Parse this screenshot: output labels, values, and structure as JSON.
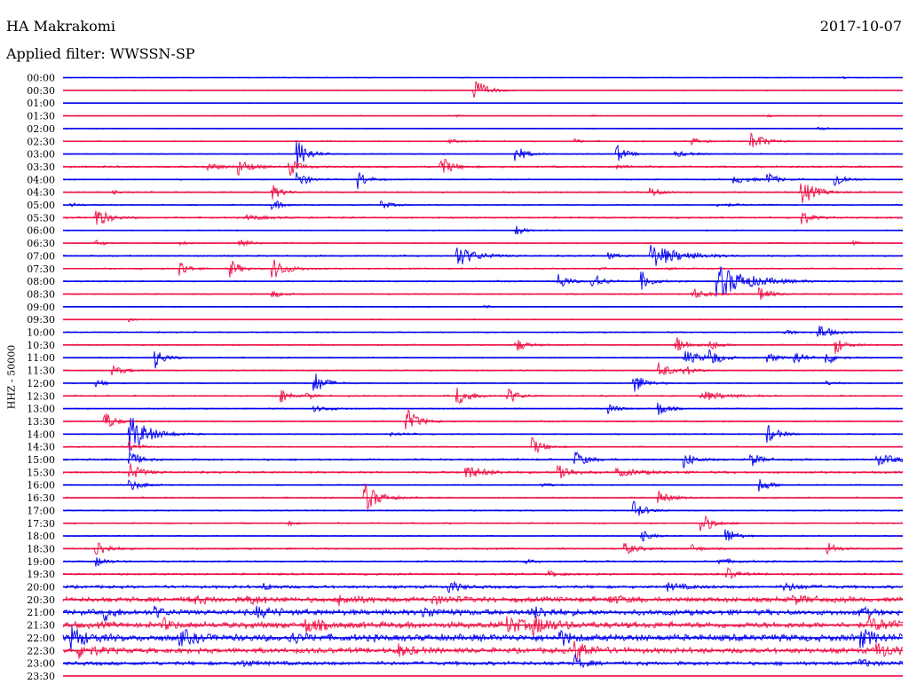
{
  "header": {
    "station": "HA Makrakomi",
    "date": "2017-10-07",
    "filter": "Applied filter: WWSSN-SP",
    "channel_label": "HHZ - 50000"
  },
  "colors": {
    "odd_trace": "#0000ee",
    "even_trace": "#ee1144"
  },
  "chart_data": {
    "type": "line",
    "title": "HA Makrakomi",
    "subtitle": "Applied filter: WWSSN-SP",
    "ylabel": "HHZ - 50000",
    "date": "2017-10-07",
    "row_interval_minutes": 30,
    "series_colors_alternate": [
      "blue",
      "red"
    ],
    "rows": [
      {
        "label": "00:00",
        "noise": 0.4,
        "events": [
          {
            "t": 0.93,
            "a": 1.2,
            "d": 0.008
          }
        ]
      },
      {
        "label": "00:30",
        "noise": 0.5,
        "events": [
          {
            "t": 0.49,
            "a": 14,
            "d": 0.012
          }
        ]
      },
      {
        "label": "01:00",
        "noise": 0.4,
        "events": []
      },
      {
        "label": "01:30",
        "noise": 0.4,
        "events": [
          {
            "t": 0.47,
            "a": 1.2,
            "d": 0.005
          },
          {
            "t": 0.63,
            "a": 1.5,
            "d": 0.005
          },
          {
            "t": 0.84,
            "a": 1.4,
            "d": 0.01
          },
          {
            "t": 0.9,
            "a": 1.2,
            "d": 0.005
          }
        ]
      },
      {
        "label": "02:00",
        "noise": 0.4,
        "events": [
          {
            "t": 0.9,
            "a": 2,
            "d": 0.01
          }
        ]
      },
      {
        "label": "02:30",
        "noise": 0.6,
        "events": [
          {
            "t": 0.46,
            "a": 2,
            "d": 0.01
          },
          {
            "t": 0.61,
            "a": 2,
            "d": 0.01
          },
          {
            "t": 0.75,
            "a": 4,
            "d": 0.01
          },
          {
            "t": 0.82,
            "a": 10,
            "d": 0.015
          }
        ]
      },
      {
        "label": "03:00",
        "noise": 0.5,
        "events": [
          {
            "t": 0.28,
            "a": 16,
            "d": 0.012
          },
          {
            "t": 0.54,
            "a": 10,
            "d": 0.01
          },
          {
            "t": 0.66,
            "a": 10,
            "d": 0.01
          },
          {
            "t": 0.73,
            "a": 3,
            "d": 0.02
          }
        ]
      },
      {
        "label": "03:30",
        "noise": 0.9,
        "events": [
          {
            "t": 0.17,
            "a": 5,
            "d": 0.015
          },
          {
            "t": 0.21,
            "a": 9,
            "d": 0.012
          },
          {
            "t": 0.27,
            "a": 10,
            "d": 0.01
          },
          {
            "t": 0.45,
            "a": 12,
            "d": 0.012
          },
          {
            "t": 0.66,
            "a": 2,
            "d": 0.02
          }
        ]
      },
      {
        "label": "04:00",
        "noise": 0.6,
        "events": [
          {
            "t": 0.28,
            "a": 10,
            "d": 0.01
          },
          {
            "t": 0.35,
            "a": 12,
            "d": 0.01
          },
          {
            "t": 0.8,
            "a": 4,
            "d": 0.02
          },
          {
            "t": 0.84,
            "a": 7,
            "d": 0.01
          },
          {
            "t": 0.92,
            "a": 10,
            "d": 0.01
          }
        ]
      },
      {
        "label": "04:30",
        "noise": 0.7,
        "events": [
          {
            "t": 0.06,
            "a": 2,
            "d": 0.005
          },
          {
            "t": 0.25,
            "a": 8,
            "d": 0.01
          },
          {
            "t": 0.7,
            "a": 6,
            "d": 0.01
          },
          {
            "t": 0.88,
            "a": 14,
            "d": 0.015
          }
        ]
      },
      {
        "label": "05:00",
        "noise": 0.6,
        "events": [
          {
            "t": 0.01,
            "a": 2,
            "d": 0.01
          },
          {
            "t": 0.25,
            "a": 6,
            "d": 0.01
          },
          {
            "t": 0.38,
            "a": 5,
            "d": 0.01
          },
          {
            "t": 0.78,
            "a": 2,
            "d": 0.02
          }
        ]
      },
      {
        "label": "05:30",
        "noise": 0.8,
        "events": [
          {
            "t": 0.04,
            "a": 12,
            "d": 0.012
          },
          {
            "t": 0.22,
            "a": 3,
            "d": 0.02
          },
          {
            "t": 0.88,
            "a": 8,
            "d": 0.01
          }
        ]
      },
      {
        "label": "06:00",
        "noise": 0.5,
        "events": [
          {
            "t": 0.54,
            "a": 6,
            "d": 0.008
          }
        ]
      },
      {
        "label": "06:30",
        "noise": 0.6,
        "events": [
          {
            "t": 0.04,
            "a": 3,
            "d": 0.01
          },
          {
            "t": 0.14,
            "a": 2,
            "d": 0.01
          },
          {
            "t": 0.21,
            "a": 6,
            "d": 0.01
          },
          {
            "t": 0.94,
            "a": 2,
            "d": 0.01
          }
        ]
      },
      {
        "label": "07:00",
        "noise": 0.7,
        "events": [
          {
            "t": 0.47,
            "a": 12,
            "d": 0.02
          },
          {
            "t": 0.65,
            "a": 4,
            "d": 0.01
          },
          {
            "t": 0.7,
            "a": 14,
            "d": 0.03
          }
        ]
      },
      {
        "label": "07:30",
        "noise": 0.7,
        "events": [
          {
            "t": 0.14,
            "a": 10,
            "d": 0.008
          },
          {
            "t": 0.2,
            "a": 10,
            "d": 0.01
          },
          {
            "t": 0.25,
            "a": 12,
            "d": 0.015
          },
          {
            "t": 0.64,
            "a": 1,
            "d": 0.01
          },
          {
            "t": 0.72,
            "a": 1,
            "d": 0.01
          }
        ]
      },
      {
        "label": "08:00",
        "noise": 0.7,
        "events": [
          {
            "t": 0.59,
            "a": 10,
            "d": 0.01
          },
          {
            "t": 0.63,
            "a": 12,
            "d": 0.01
          },
          {
            "t": 0.69,
            "a": 10,
            "d": 0.01
          },
          {
            "t": 0.78,
            "a": 18,
            "d": 0.035
          }
        ]
      },
      {
        "label": "08:30",
        "noise": 0.6,
        "events": [
          {
            "t": 0.25,
            "a": 4,
            "d": 0.01
          },
          {
            "t": 0.75,
            "a": 6,
            "d": 0.015
          },
          {
            "t": 0.83,
            "a": 10,
            "d": 0.01
          }
        ]
      },
      {
        "label": "09:00",
        "noise": 0.5,
        "events": [
          {
            "t": 0.5,
            "a": 3,
            "d": 0.005
          }
        ]
      },
      {
        "label": "09:30",
        "noise": 0.5,
        "events": [
          {
            "t": 0.08,
            "a": 3,
            "d": 0.005
          }
        ]
      },
      {
        "label": "10:00",
        "noise": 0.6,
        "events": [
          {
            "t": 0.86,
            "a": 3,
            "d": 0.01
          },
          {
            "t": 0.9,
            "a": 10,
            "d": 0.012
          }
        ]
      },
      {
        "label": "10:30",
        "noise": 0.7,
        "events": [
          {
            "t": 0.54,
            "a": 8,
            "d": 0.01
          },
          {
            "t": 0.73,
            "a": 10,
            "d": 0.012
          },
          {
            "t": 0.77,
            "a": 6,
            "d": 0.01
          },
          {
            "t": 0.92,
            "a": 10,
            "d": 0.01
          }
        ]
      },
      {
        "label": "11:00",
        "noise": 0.6,
        "events": [
          {
            "t": 0.11,
            "a": 12,
            "d": 0.01
          },
          {
            "t": 0.74,
            "a": 8,
            "d": 0.02
          },
          {
            "t": 0.77,
            "a": 10,
            "d": 0.01
          },
          {
            "t": 0.84,
            "a": 6,
            "d": 0.01
          },
          {
            "t": 0.87,
            "a": 10,
            "d": 0.01
          },
          {
            "t": 0.91,
            "a": 8,
            "d": 0.01
          }
        ]
      },
      {
        "label": "11:30",
        "noise": 0.6,
        "events": [
          {
            "t": 0.06,
            "a": 5,
            "d": 0.015
          },
          {
            "t": 0.71,
            "a": 10,
            "d": 0.012
          },
          {
            "t": 0.74,
            "a": 6,
            "d": 0.01
          }
        ]
      },
      {
        "label": "12:00",
        "noise": 0.6,
        "events": [
          {
            "t": 0.04,
            "a": 4,
            "d": 0.01
          },
          {
            "t": 0.3,
            "a": 12,
            "d": 0.012
          },
          {
            "t": 0.68,
            "a": 12,
            "d": 0.012
          },
          {
            "t": 0.91,
            "a": 2,
            "d": 0.01
          }
        ]
      },
      {
        "label": "12:30",
        "noise": 0.7,
        "events": [
          {
            "t": 0.26,
            "a": 8,
            "d": 0.008
          },
          {
            "t": 0.29,
            "a": 4,
            "d": 0.008
          },
          {
            "t": 0.47,
            "a": 10,
            "d": 0.015
          },
          {
            "t": 0.53,
            "a": 10,
            "d": 0.01
          },
          {
            "t": 0.76,
            "a": 6,
            "d": 0.025
          }
        ]
      },
      {
        "label": "13:00",
        "noise": 0.6,
        "events": [
          {
            "t": 0.3,
            "a": 3,
            "d": 0.02
          },
          {
            "t": 0.65,
            "a": 6,
            "d": 0.01
          },
          {
            "t": 0.71,
            "a": 8,
            "d": 0.01
          }
        ]
      },
      {
        "label": "13:30",
        "noise": 0.7,
        "events": [
          {
            "t": 0.05,
            "a": 12,
            "d": 0.01
          },
          {
            "t": 0.41,
            "a": 14,
            "d": 0.012
          }
        ]
      },
      {
        "label": "14:00",
        "noise": 0.6,
        "events": [
          {
            "t": 0.08,
            "a": 22,
            "d": 0.02
          },
          {
            "t": 0.39,
            "a": 2,
            "d": 0.02
          },
          {
            "t": 0.84,
            "a": 10,
            "d": 0.012
          }
        ]
      },
      {
        "label": "14:30",
        "noise": 0.6,
        "events": [
          {
            "t": 0.08,
            "a": 6,
            "d": 0.01
          },
          {
            "t": 0.56,
            "a": 10,
            "d": 0.012
          }
        ]
      },
      {
        "label": "15:00",
        "noise": 0.9,
        "events": [
          {
            "t": 0.08,
            "a": 10,
            "d": 0.01
          },
          {
            "t": 0.61,
            "a": 10,
            "d": 0.012
          },
          {
            "t": 0.74,
            "a": 10,
            "d": 0.01
          },
          {
            "t": 0.82,
            "a": 8,
            "d": 0.01
          },
          {
            "t": 0.97,
            "a": 6,
            "d": 0.025
          }
        ]
      },
      {
        "label": "15:30",
        "noise": 1.0,
        "events": [
          {
            "t": 0.08,
            "a": 10,
            "d": 0.012
          },
          {
            "t": 0.48,
            "a": 8,
            "d": 0.02
          },
          {
            "t": 0.59,
            "a": 12,
            "d": 0.012
          },
          {
            "t": 0.66,
            "a": 4,
            "d": 0.03
          }
        ]
      },
      {
        "label": "16:00",
        "noise": 0.6,
        "events": [
          {
            "t": 0.08,
            "a": 6,
            "d": 0.015
          },
          {
            "t": 0.57,
            "a": 3,
            "d": 0.01
          },
          {
            "t": 0.83,
            "a": 8,
            "d": 0.012
          }
        ]
      },
      {
        "label": "16:30",
        "noise": 0.7,
        "events": [
          {
            "t": 0.36,
            "a": 16,
            "d": 0.015
          },
          {
            "t": 0.71,
            "a": 8,
            "d": 0.012
          }
        ]
      },
      {
        "label": "17:00",
        "noise": 0.6,
        "events": [
          {
            "t": 0.68,
            "a": 10,
            "d": 0.012
          }
        ]
      },
      {
        "label": "17:30",
        "noise": 0.7,
        "events": [
          {
            "t": 0.27,
            "a": 2,
            "d": 0.01
          },
          {
            "t": 0.76,
            "a": 12,
            "d": 0.012
          }
        ]
      },
      {
        "label": "18:00",
        "noise": 0.6,
        "events": [
          {
            "t": 0.69,
            "a": 6,
            "d": 0.01
          },
          {
            "t": 0.79,
            "a": 10,
            "d": 0.01
          }
        ]
      },
      {
        "label": "18:30",
        "noise": 0.8,
        "events": [
          {
            "t": 0.04,
            "a": 10,
            "d": 0.012
          },
          {
            "t": 0.67,
            "a": 6,
            "d": 0.015
          },
          {
            "t": 0.75,
            "a": 4,
            "d": 0.01
          },
          {
            "t": 0.91,
            "a": 8,
            "d": 0.01
          }
        ]
      },
      {
        "label": "19:00",
        "noise": 0.8,
        "events": [
          {
            "t": 0.04,
            "a": 6,
            "d": 0.01
          },
          {
            "t": 0.55,
            "a": 3,
            "d": 0.01
          },
          {
            "t": 0.78,
            "a": 3,
            "d": 0.02
          }
        ]
      },
      {
        "label": "19:30",
        "noise": 1.0,
        "events": [
          {
            "t": 0.58,
            "a": 3,
            "d": 0.01
          },
          {
            "t": 0.79,
            "a": 8,
            "d": 0.01
          }
        ]
      },
      {
        "label": "20:00",
        "noise": 1.4,
        "events": [
          {
            "t": 0.24,
            "a": 4,
            "d": 0.01
          },
          {
            "t": 0.46,
            "a": 8,
            "d": 0.01
          },
          {
            "t": 0.72,
            "a": 4,
            "d": 0.02
          },
          {
            "t": 0.86,
            "a": 4,
            "d": 0.02
          }
        ]
      },
      {
        "label": "20:30",
        "noise": 2.4,
        "events": [
          {
            "t": 0.15,
            "a": 4,
            "d": 0.02
          },
          {
            "t": 0.22,
            "a": 4,
            "d": 0.02
          },
          {
            "t": 0.33,
            "a": 5,
            "d": 0.02
          },
          {
            "t": 0.44,
            "a": 4,
            "d": 0.02
          },
          {
            "t": 0.65,
            "a": 4,
            "d": 0.02
          },
          {
            "t": 0.87,
            "a": 4,
            "d": 0.02
          }
        ]
      },
      {
        "label": "21:00",
        "noise": 2.6,
        "events": [
          {
            "t": 0.05,
            "a": 8,
            "d": 0.01
          },
          {
            "t": 0.11,
            "a": 6,
            "d": 0.01
          },
          {
            "t": 0.23,
            "a": 5,
            "d": 0.02
          },
          {
            "t": 0.43,
            "a": 5,
            "d": 0.02
          },
          {
            "t": 0.56,
            "a": 6,
            "d": 0.02
          },
          {
            "t": 0.95,
            "a": 6,
            "d": 0.01
          }
        ]
      },
      {
        "label": "21:30",
        "noise": 3.0,
        "events": [
          {
            "t": 0.12,
            "a": 6,
            "d": 0.01
          },
          {
            "t": 0.29,
            "a": 8,
            "d": 0.015
          },
          {
            "t": 0.53,
            "a": 8,
            "d": 0.02
          },
          {
            "t": 0.56,
            "a": 8,
            "d": 0.02
          },
          {
            "t": 0.96,
            "a": 8,
            "d": 0.02
          }
        ]
      },
      {
        "label": "22:00",
        "noise": 3.2,
        "events": [
          {
            "t": 0.01,
            "a": 12,
            "d": 0.015
          },
          {
            "t": 0.14,
            "a": 8,
            "d": 0.015
          },
          {
            "t": 0.27,
            "a": 6,
            "d": 0.015
          },
          {
            "t": 0.59,
            "a": 10,
            "d": 0.01
          },
          {
            "t": 0.95,
            "a": 10,
            "d": 0.015
          }
        ]
      },
      {
        "label": "22:30",
        "noise": 2.6,
        "events": [
          {
            "t": 0.02,
            "a": 8,
            "d": 0.015
          },
          {
            "t": 0.4,
            "a": 6,
            "d": 0.015
          },
          {
            "t": 0.61,
            "a": 12,
            "d": 0.015
          },
          {
            "t": 0.97,
            "a": 8,
            "d": 0.015
          }
        ]
      },
      {
        "label": "23:00",
        "noise": 1.8,
        "events": [
          {
            "t": 0.21,
            "a": 4,
            "d": 0.015
          },
          {
            "t": 0.61,
            "a": 8,
            "d": 0.01
          },
          {
            "t": 0.95,
            "a": 4,
            "d": 0.015
          }
        ]
      },
      {
        "label": "23:30",
        "noise": 0.3,
        "events": []
      }
    ]
  }
}
